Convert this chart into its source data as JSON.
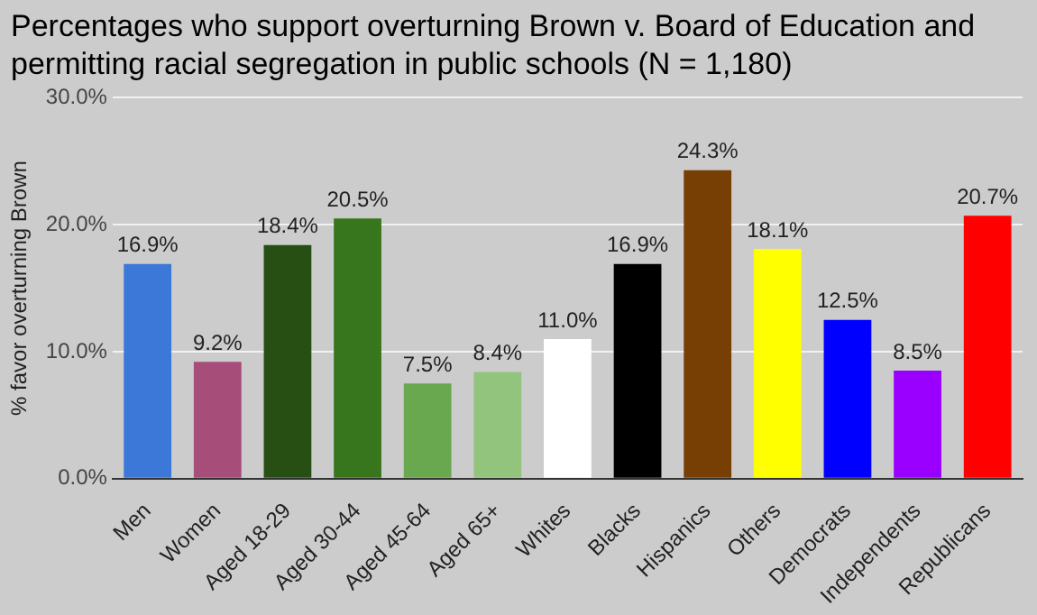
{
  "chart_data": {
    "type": "bar",
    "title": "Percentages who support overturning Brown v. Board of Education and permitting racial segregation in public schools (N = 1,180)",
    "ylabel": "% favor overturning Brown",
    "categories": [
      "Men",
      "Women",
      "Aged 18-29",
      "Aged 30-44",
      "Aged 45-64",
      "Aged 65+",
      "Whites",
      "Blacks",
      "Hispanics",
      "Others",
      "Democrats",
      "Independents",
      "Republicans"
    ],
    "values": [
      16.9,
      9.2,
      18.4,
      20.5,
      7.5,
      8.4,
      11.0,
      16.9,
      24.3,
      18.1,
      12.5,
      8.5,
      20.7
    ],
    "value_labels": [
      "16.9%",
      "9.2%",
      "18.4%",
      "20.5%",
      "7.5%",
      "8.4%",
      "11.0%",
      "16.9%",
      "24.3%",
      "18.1%",
      "12.5%",
      "8.5%",
      "20.7%"
    ],
    "colors": [
      "#3c78d8",
      "#a64d79",
      "#274e13",
      "#38761d",
      "#6aa84f",
      "#93c47d",
      "#ffffff",
      "#000000",
      "#783f04",
      "#ffff00",
      "#0000ff",
      "#9900ff",
      "#ff0000"
    ],
    "ylim": [
      0,
      30
    ],
    "yticks": [
      {
        "value": 0,
        "label": "0.0%"
      },
      {
        "value": 10,
        "label": "10.0%"
      },
      {
        "value": 20,
        "label": "20.0%"
      },
      {
        "value": 30,
        "label": "30.0%"
      }
    ],
    "grid": "y"
  }
}
